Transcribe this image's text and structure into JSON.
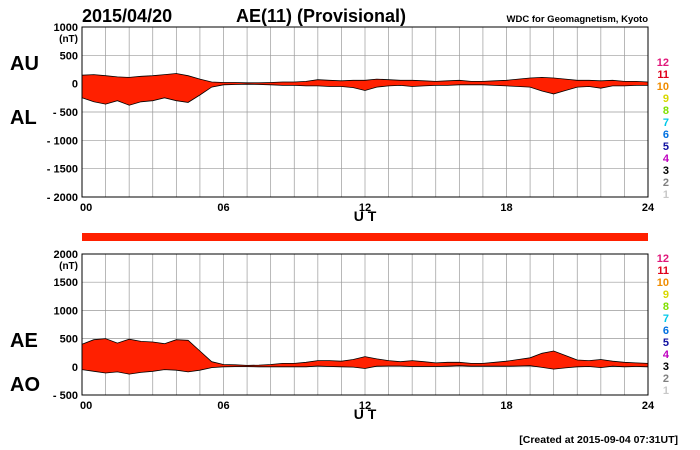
{
  "header": {
    "date": "2015/04/20",
    "title": "AE(11) (Provisional)",
    "source": "WDC for Geomagnetism, Kyoto"
  },
  "footer": {
    "created": "[Created at 2015-09-04 07:31UT]"
  },
  "station_count_legend": [
    {
      "label": "12",
      "color": "#e0177a"
    },
    {
      "label": "11",
      "color": "#e0001a"
    },
    {
      "label": "10",
      "color": "#f08c00"
    },
    {
      "label": "9",
      "color": "#d8d800"
    },
    {
      "label": "8",
      "color": "#80e000"
    },
    {
      "label": "7",
      "color": "#00c8e8"
    },
    {
      "label": "6",
      "color": "#0070e0"
    },
    {
      "label": "5",
      "color": "#1010a0"
    },
    {
      "label": "4",
      "color": "#c000c0"
    },
    {
      "label": "3",
      "color": "#000000"
    },
    {
      "label": "2",
      "color": "#808080"
    },
    {
      "label": "1",
      "color": "#c8c8c8"
    }
  ],
  "colors": {
    "fill": "#ff2000",
    "line": "#000000",
    "grid": "#9a9a9a",
    "station_bar": "#ff2000"
  },
  "chart_data": [
    {
      "type": "area",
      "title": "AU / AL",
      "upper_label": "AU",
      "lower_label": "AL",
      "unit": "(nT)",
      "xlabel": "U T",
      "xlim": [
        0,
        24
      ],
      "xticks": [
        0,
        6,
        12,
        18,
        24
      ],
      "xtick_labels": [
        "00",
        "06",
        "12",
        "18",
        "24"
      ],
      "ylim": [
        -2000,
        1000
      ],
      "yticks": [
        1000,
        500,
        0,
        -500,
        -1000,
        -1500,
        -2000
      ],
      "ytick_labels": [
        "1000",
        "500",
        "0",
        "- 500",
        "- 1000",
        "- 1500",
        "- 2000"
      ],
      "grid": true,
      "x": [
        0,
        0.5,
        1,
        1.5,
        2,
        2.5,
        3,
        3.5,
        4,
        4.5,
        5,
        5.5,
        6,
        6.5,
        7,
        7.5,
        8,
        8.5,
        9,
        9.5,
        10,
        10.5,
        11,
        11.5,
        12,
        12.5,
        13,
        13.5,
        14,
        14.5,
        15,
        15.5,
        16,
        16.5,
        17,
        17.5,
        18,
        18.5,
        19,
        19.5,
        20,
        20.5,
        21,
        21.5,
        22,
        22.5,
        23,
        23.5,
        24
      ],
      "series": [
        {
          "name": "AU",
          "values": [
            150,
            160,
            140,
            120,
            110,
            130,
            140,
            160,
            180,
            140,
            80,
            30,
            20,
            20,
            15,
            15,
            20,
            30,
            30,
            40,
            70,
            60,
            50,
            60,
            60,
            80,
            70,
            60,
            60,
            50,
            40,
            50,
            60,
            40,
            40,
            50,
            60,
            80,
            100,
            110,
            100,
            80,
            60,
            60,
            50,
            60,
            40,
            40,
            30
          ]
        },
        {
          "name": "AL",
          "values": [
            -250,
            -320,
            -360,
            -300,
            -380,
            -320,
            -300,
            -250,
            -300,
            -330,
            -200,
            -60,
            -20,
            -15,
            -10,
            -15,
            -20,
            -30,
            -30,
            -40,
            -40,
            -50,
            -50,
            -70,
            -120,
            -60,
            -40,
            -30,
            -50,
            -40,
            -30,
            -30,
            -20,
            -20,
            -20,
            -30,
            -40,
            -50,
            -60,
            -130,
            -180,
            -120,
            -60,
            -50,
            -80,
            -40,
            -40,
            -30,
            -30
          ]
        }
      ]
    },
    {
      "type": "area",
      "title": "AE / AO",
      "upper_label": "AE",
      "lower_label": "AO",
      "unit": "(nT)",
      "xlabel": "U T",
      "xlim": [
        0,
        24
      ],
      "xticks": [
        0,
        6,
        12,
        18,
        24
      ],
      "xtick_labels": [
        "00",
        "06",
        "12",
        "18",
        "24"
      ],
      "ylim": [
        -500,
        2000
      ],
      "yticks": [
        2000,
        1500,
        1000,
        500,
        0,
        -500
      ],
      "ytick_labels": [
        "2000",
        "1500",
        "1000",
        "500",
        "0",
        "- 500"
      ],
      "grid": true,
      "x": [
        0,
        0.5,
        1,
        1.5,
        2,
        2.5,
        3,
        3.5,
        4,
        4.5,
        5,
        5.5,
        6,
        6.5,
        7,
        7.5,
        8,
        8.5,
        9,
        9.5,
        10,
        10.5,
        11,
        11.5,
        12,
        12.5,
        13,
        13.5,
        14,
        14.5,
        15,
        15.5,
        16,
        16.5,
        17,
        17.5,
        18,
        18.5,
        19,
        19.5,
        20,
        20.5,
        21,
        21.5,
        22,
        22.5,
        23,
        23.5,
        24
      ],
      "series": [
        {
          "name": "AE",
          "values": [
            400,
            480,
            500,
            420,
            490,
            450,
            440,
            410,
            480,
            470,
            280,
            90,
            40,
            35,
            25,
            30,
            40,
            60,
            60,
            80,
            110,
            110,
            100,
            130,
            180,
            140,
            110,
            90,
            110,
            90,
            70,
            80,
            80,
            60,
            60,
            80,
            100,
            130,
            160,
            240,
            280,
            200,
            120,
            110,
            130,
            100,
            80,
            70,
            60
          ]
        },
        {
          "name": "AO",
          "values": [
            -50,
            -80,
            -110,
            -90,
            -130,
            -100,
            -80,
            -50,
            -60,
            -90,
            -60,
            -15,
            0,
            3,
            3,
            0,
            0,
            0,
            0,
            0,
            15,
            5,
            0,
            -5,
            -30,
            10,
            15,
            15,
            5,
            5,
            5,
            10,
            20,
            10,
            10,
            10,
            10,
            15,
            20,
            -10,
            -40,
            -20,
            0,
            5,
            -15,
            10,
            0,
            5,
            0
          ]
        }
      ]
    }
  ]
}
